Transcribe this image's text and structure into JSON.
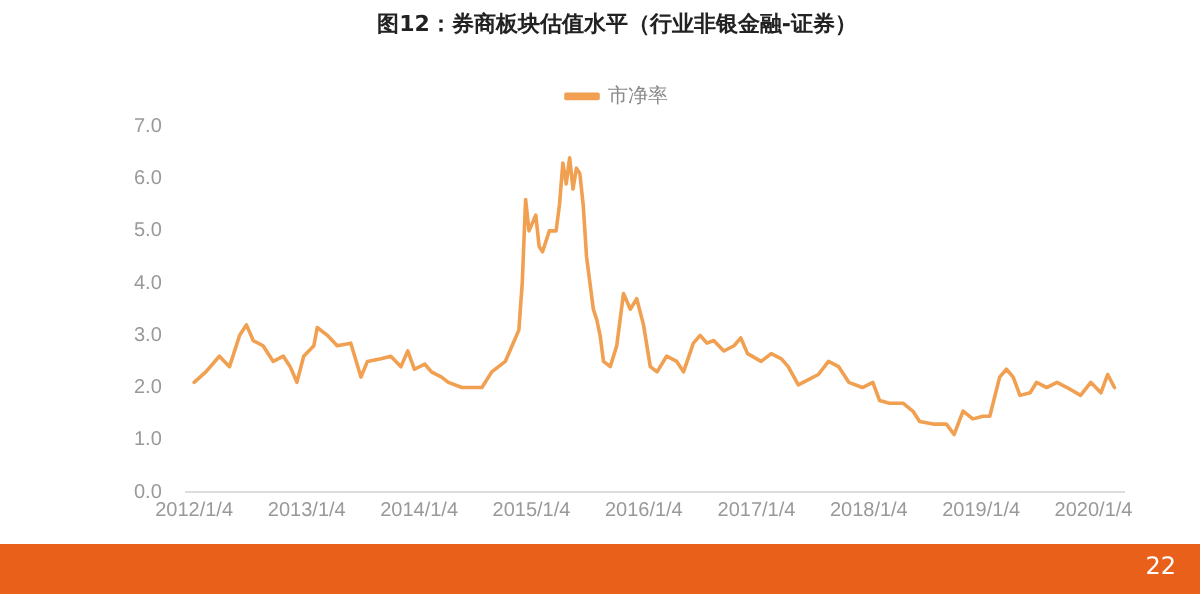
{
  "chart_data": {
    "type": "line",
    "title": "图12：券商板块估值水平（行业非银金融-证券）",
    "legend": "top",
    "grid": false,
    "marker": "none",
    "line_style": "solid",
    "x": [
      "2012-01-04",
      "2012-02-11",
      "2012-03-26",
      "2012-04-28",
      "2012-05-31",
      "2012-06-22",
      "2012-07-14",
      "2012-08-15",
      "2012-09-17",
      "2012-10-20",
      "2012-11-11",
      "2012-12-03",
      "2012-12-25",
      "2013-01-27",
      "2013-02-07",
      "2013-03-12",
      "2013-04-13",
      "2013-05-27",
      "2013-06-29",
      "2013-07-20",
      "2013-09-02",
      "2013-10-04",
      "2013-11-06",
      "2013-11-28",
      "2013-12-20",
      "2014-01-22",
      "2014-02-13",
      "2014-03-18",
      "2014-04-09",
      "2014-05-23",
      "2014-07-27",
      "2014-08-28",
      "2014-10-11",
      "2014-11-02",
      "2014-11-24",
      "2014-12-05",
      "2014-12-16",
      "2014-12-27",
      "2015-01-18",
      "2015-01-29",
      "2015-02-09",
      "2015-03-03",
      "2015-03-25",
      "2015-04-05",
      "2015-04-16",
      "2015-04-27",
      "2015-05-08",
      "2015-05-19",
      "2015-05-30",
      "2015-06-10",
      "2015-06-21",
      "2015-07-02",
      "2015-07-13",
      "2015-07-24",
      "2015-08-04",
      "2015-08-15",
      "2015-08-26",
      "2015-09-17",
      "2015-10-08",
      "2015-10-30",
      "2015-11-21",
      "2015-12-12",
      "2016-01-03",
      "2016-01-25",
      "2016-02-16",
      "2016-03-18",
      "2016-04-20",
      "2016-05-12",
      "2016-06-13",
      "2016-07-05",
      "2016-07-27",
      "2016-08-18",
      "2016-09-20",
      "2016-10-23",
      "2016-11-14",
      "2016-12-06",
      "2017-01-19",
      "2017-02-21",
      "2017-03-26",
      "2017-04-17",
      "2017-05-20",
      "2017-06-22",
      "2017-07-24",
      "2017-08-26",
      "2017-09-28",
      "2017-10-31",
      "2017-12-14",
      "2018-01-17",
      "2018-02-08",
      "2018-03-12",
      "2018-04-25",
      "2018-05-27",
      "2018-06-18",
      "2018-08-01",
      "2018-09-13",
      "2018-10-08",
      "2018-11-06",
      "2018-12-08",
      "2019-01-10",
      "2019-02-01",
      "2019-03-05",
      "2019-03-27",
      "2019-04-18",
      "2019-05-10",
      "2019-06-12",
      "2019-07-03",
      "2019-08-05",
      "2019-09-07",
      "2019-10-10",
      "2019-11-23",
      "2019-12-26",
      "2020-01-28",
      "2020-02-19",
      "2020-03-12"
    ],
    "series": [
      {
        "name": "市净率",
        "color": "#f0a050",
        "values": [
          2.1,
          2.3,
          2.6,
          2.4,
          3.0,
          3.2,
          2.9,
          2.8,
          2.5,
          2.6,
          2.4,
          2.1,
          2.6,
          2.8,
          3.15,
          3.0,
          2.8,
          2.85,
          2.2,
          2.5,
          2.55,
          2.6,
          2.4,
          2.7,
          2.35,
          2.45,
          2.3,
          2.2,
          2.1,
          2.0,
          2.0,
          2.3,
          2.5,
          2.8,
          3.1,
          4.0,
          5.6,
          5.0,
          5.3,
          4.7,
          4.6,
          5.0,
          5.0,
          5.5,
          6.3,
          5.9,
          6.4,
          5.8,
          6.2,
          6.1,
          5.5,
          4.5,
          4.0,
          3.5,
          3.3,
          3.0,
          2.5,
          2.4,
          2.8,
          3.8,
          3.5,
          3.7,
          3.2,
          2.4,
          2.3,
          2.6,
          2.5,
          2.3,
          2.85,
          3.0,
          2.85,
          2.9,
          2.7,
          2.8,
          2.95,
          2.65,
          2.5,
          2.65,
          2.55,
          2.4,
          2.05,
          2.15,
          2.25,
          2.5,
          2.4,
          2.1,
          2.0,
          2.1,
          1.75,
          1.7,
          1.7,
          1.55,
          1.35,
          1.3,
          1.3,
          1.1,
          1.55,
          1.4,
          1.45,
          1.45,
          2.2,
          2.35,
          2.2,
          1.85,
          1.9,
          2.1,
          2.0,
          2.1,
          2.0,
          1.85,
          2.1,
          1.9,
          2.25,
          2.0
        ]
      }
    ],
    "xlim": [
      "2011-12-08",
      "2020-04-12"
    ],
    "xticks": [
      {
        "value": "2012-01-04",
        "label": "2012/1/4"
      },
      {
        "value": "2013-01-04",
        "label": "2013/1/4"
      },
      {
        "value": "2014-01-04",
        "label": "2014/1/4"
      },
      {
        "value": "2015-01-04",
        "label": "2015/1/4"
      },
      {
        "value": "2016-01-04",
        "label": "2016/1/4"
      },
      {
        "value": "2017-01-04",
        "label": "2017/1/4"
      },
      {
        "value": "2018-01-04",
        "label": "2018/1/4"
      },
      {
        "value": "2019-01-04",
        "label": "2019/1/4"
      },
      {
        "value": "2020-01-04",
        "label": "2020/1/4"
      }
    ],
    "ylim": [
      0,
      7
    ],
    "yticks": [
      {
        "value": 0,
        "label": "0.0"
      },
      {
        "value": 1,
        "label": "1.0"
      },
      {
        "value": 2,
        "label": "2.0"
      },
      {
        "value": 3,
        "label": "3.0"
      },
      {
        "value": 4,
        "label": "4.0"
      },
      {
        "value": 5,
        "label": "5.0"
      },
      {
        "value": 6,
        "label": "6.0"
      },
      {
        "value": 7,
        "label": "7.0"
      }
    ],
    "annotations": [
      "22"
    ]
  }
}
